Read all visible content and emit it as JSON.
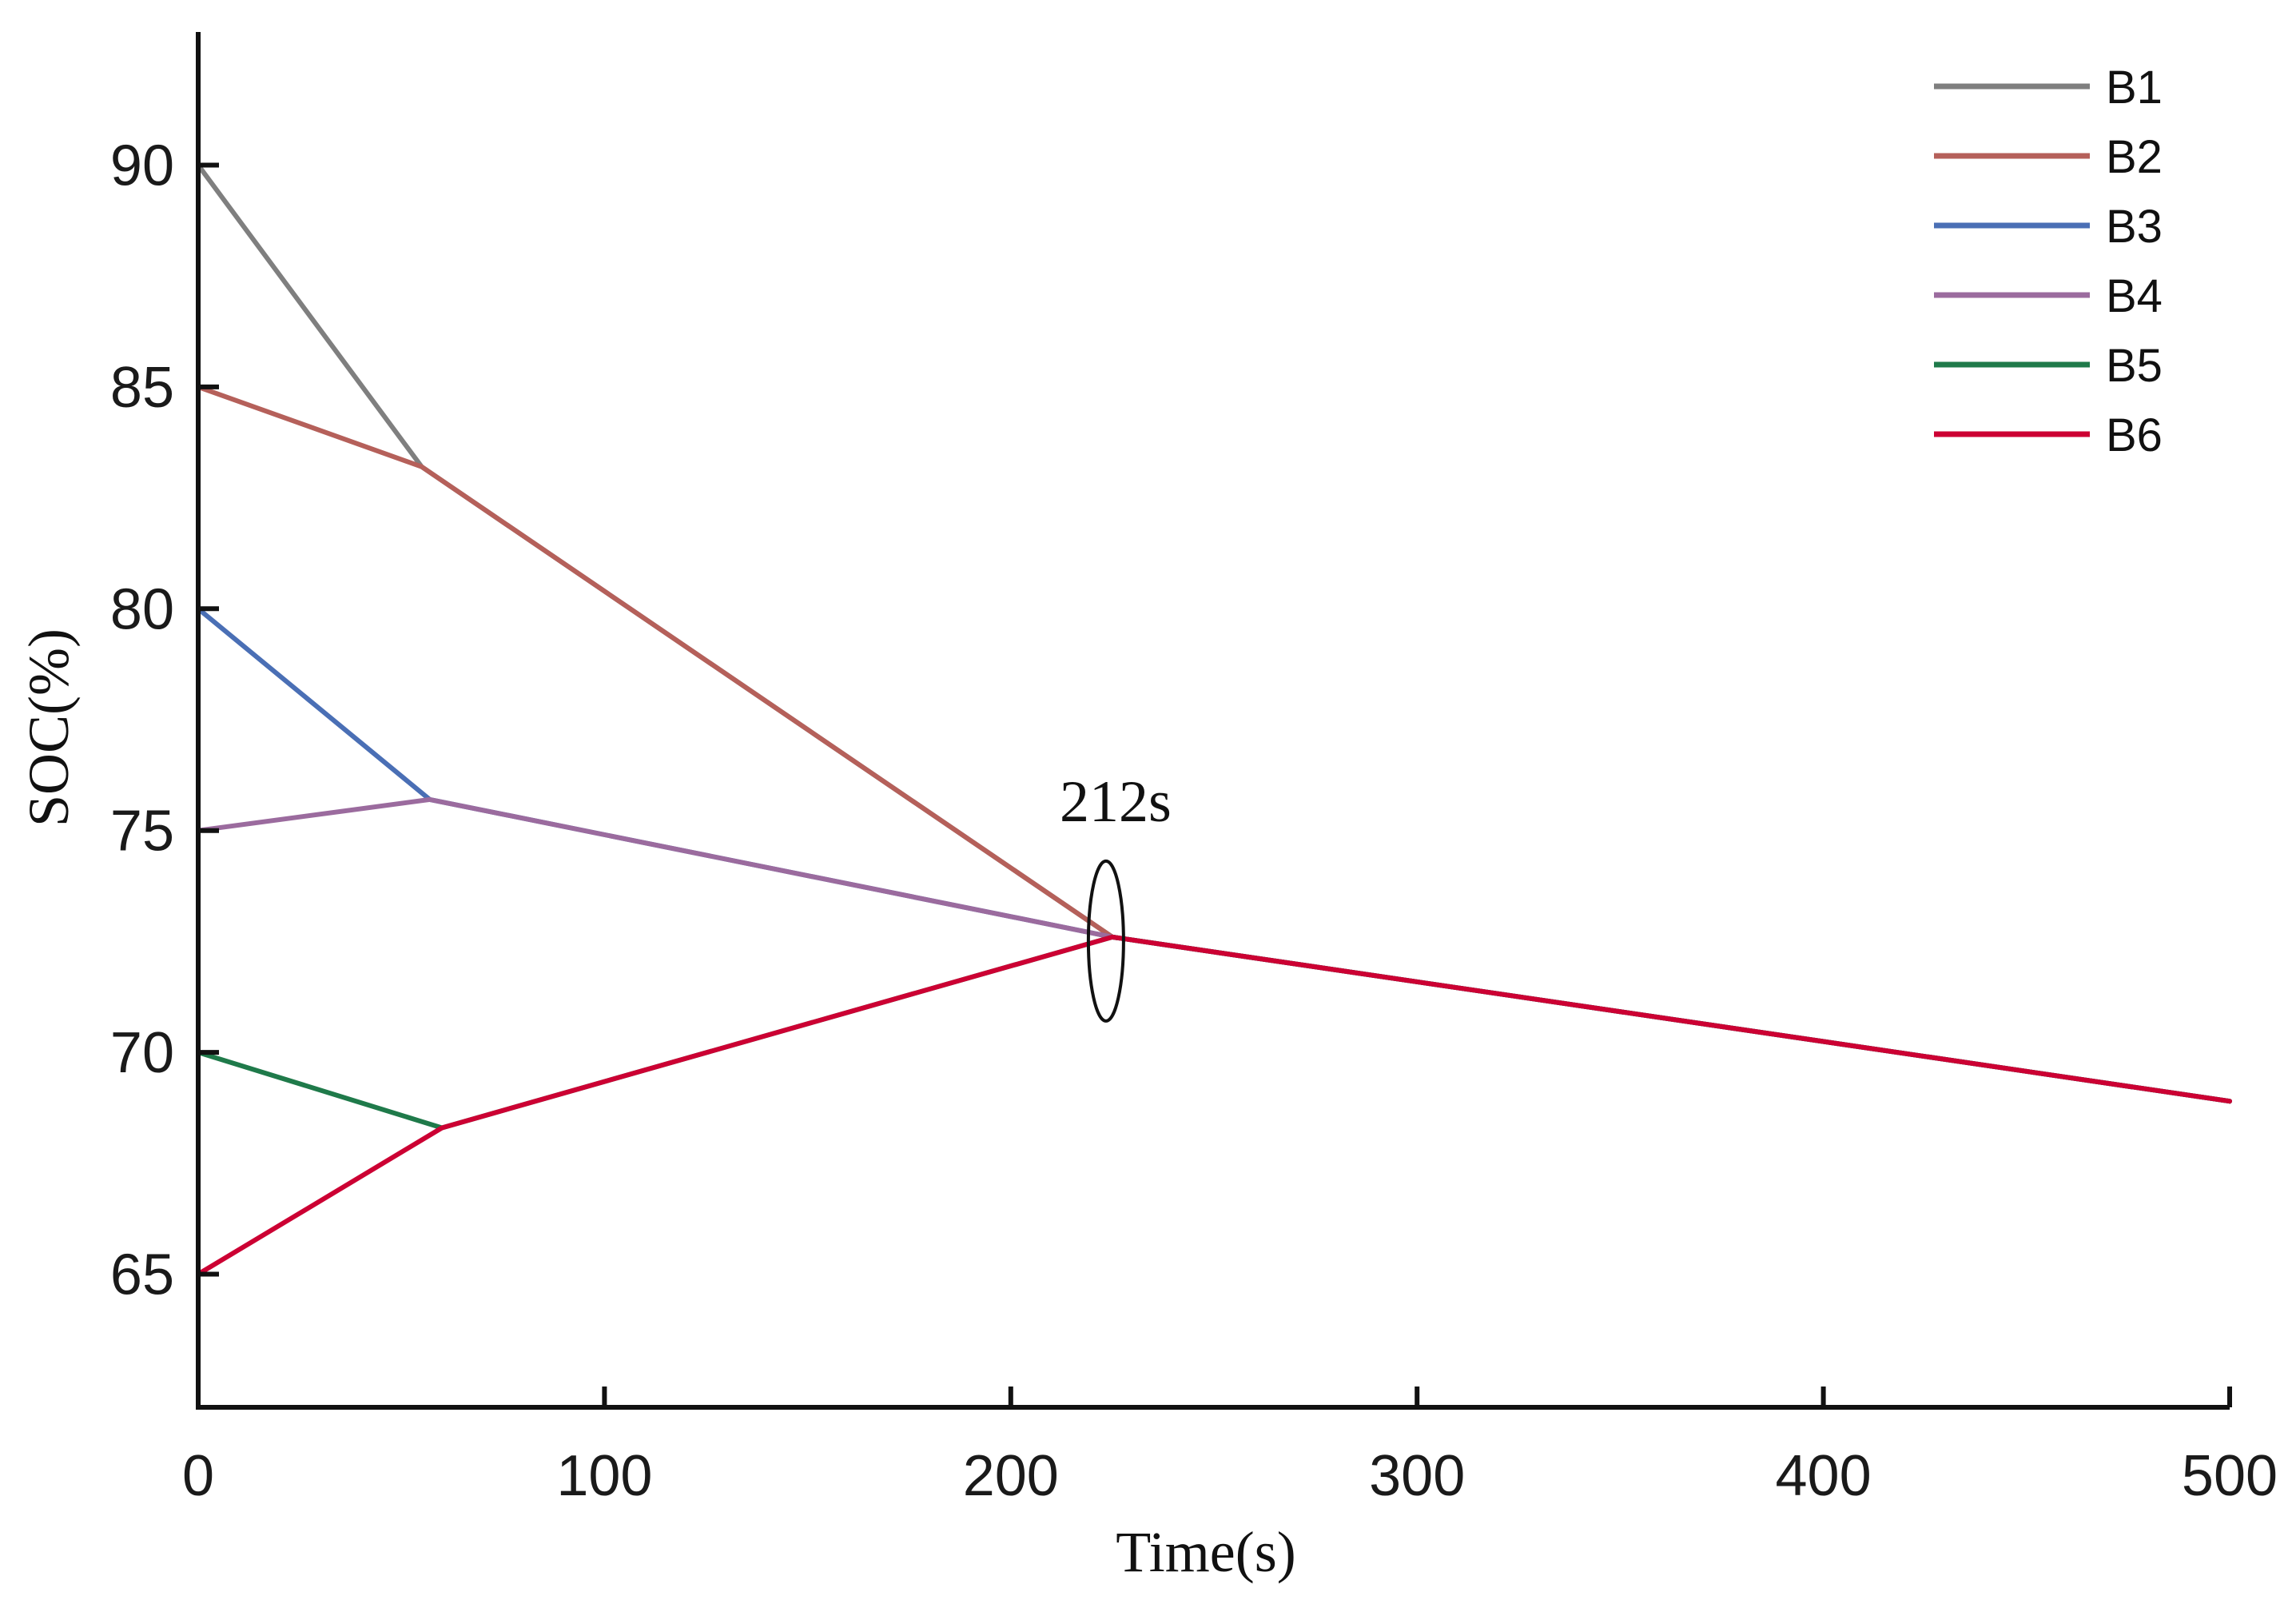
{
  "chart_data": {
    "type": "line",
    "title": "",
    "xlabel": "Time(s)",
    "ylabel": "SOC(%)",
    "xlim": [
      0,
      500
    ],
    "ylim": [
      62,
      93
    ],
    "xticks": [
      0,
      100,
      200,
      300,
      400,
      500
    ],
    "yticks": [
      65,
      70,
      75,
      80,
      85,
      90
    ],
    "grid": false,
    "legend": "top-right",
    "series": [
      {
        "name": "B1",
        "color": "#7f7f7f",
        "x": [
          0,
          55,
          225,
          500
        ],
        "y": [
          90,
          83.2,
          72.6,
          68.9
        ]
      },
      {
        "name": "B2",
        "color": "#b5605a",
        "x": [
          0,
          55,
          225,
          500
        ],
        "y": [
          85,
          83.2,
          72.6,
          68.9
        ]
      },
      {
        "name": "B3",
        "color": "#4a6fb5",
        "x": [
          0,
          57,
          225,
          500
        ],
        "y": [
          80,
          75.7,
          72.6,
          68.9
        ]
      },
      {
        "name": "B4",
        "color": "#9b6b9e",
        "x": [
          0,
          57,
          225,
          500
        ],
        "y": [
          75,
          75.7,
          72.6,
          68.9
        ]
      },
      {
        "name": "B5",
        "color": "#1f7a4a",
        "x": [
          0,
          60,
          225,
          500
        ],
        "y": [
          70,
          68.3,
          72.6,
          68.9
        ]
      },
      {
        "name": "B6",
        "color": "#cc0033",
        "x": [
          0,
          60,
          225,
          500
        ],
        "y": [
          65,
          68.3,
          72.6,
          68.9
        ]
      }
    ],
    "annotations": [
      {
        "text": "212s",
        "x": 225,
        "y": 72.6
      }
    ]
  }
}
